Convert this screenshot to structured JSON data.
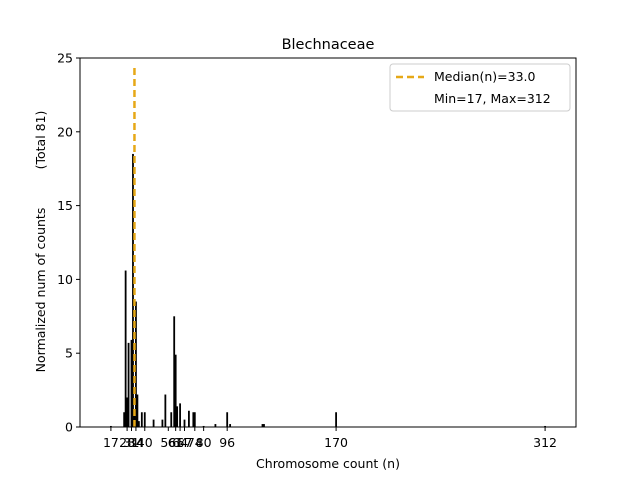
{
  "chart_data": {
    "type": "bar",
    "title": "Blechnaceae",
    "xlabel": "Chromosome count (n)",
    "ylabel": "Normalized num of counts",
    "ylabel_total": "(Total 81)",
    "xlim": [
      -4,
      333
    ],
    "ylim": [
      0,
      25
    ],
    "yticks": [
      0,
      5,
      10,
      15,
      20,
      25
    ],
    "xticks": [
      17,
      28,
      31,
      34,
      40,
      56,
      61,
      64,
      67,
      74,
      80,
      96,
      170,
      312
    ],
    "xtick_labels": [
      "17",
      "28",
      "31",
      "34",
      "40",
      "56",
      "61",
      "64",
      "67",
      "74",
      "80",
      "96",
      "170",
      "312"
    ],
    "series": [
      {
        "x": [
          17,
          26,
          27,
          28,
          29,
          31,
          32,
          33,
          34,
          35,
          36,
          38,
          40,
          46,
          52,
          54,
          58,
          60,
          61,
          62,
          64,
          67,
          70,
          73,
          74,
          80,
          88,
          96,
          98,
          120,
          121,
          170,
          312
        ],
        "values": [
          0.07,
          1.0,
          10.6,
          2.0,
          5.7,
          5.9,
          18.5,
          1.0,
          8.5,
          2.2,
          0.4,
          1.0,
          1.0,
          0.5,
          0.5,
          2.2,
          1.0,
          7.5,
          4.9,
          1.4,
          1.6,
          0.5,
          1.1,
          1.0,
          1.0,
          0.07,
          0.2,
          1.0,
          0.2,
          0.2,
          0.2,
          1.0,
          0.07
        ]
      }
    ],
    "median_line": {
      "x": 33.0,
      "color": "#e6a817"
    },
    "legend": {
      "position": "top-right",
      "entries": [
        "Median(n)=33.0",
        "Min=17, Max=312"
      ]
    }
  }
}
